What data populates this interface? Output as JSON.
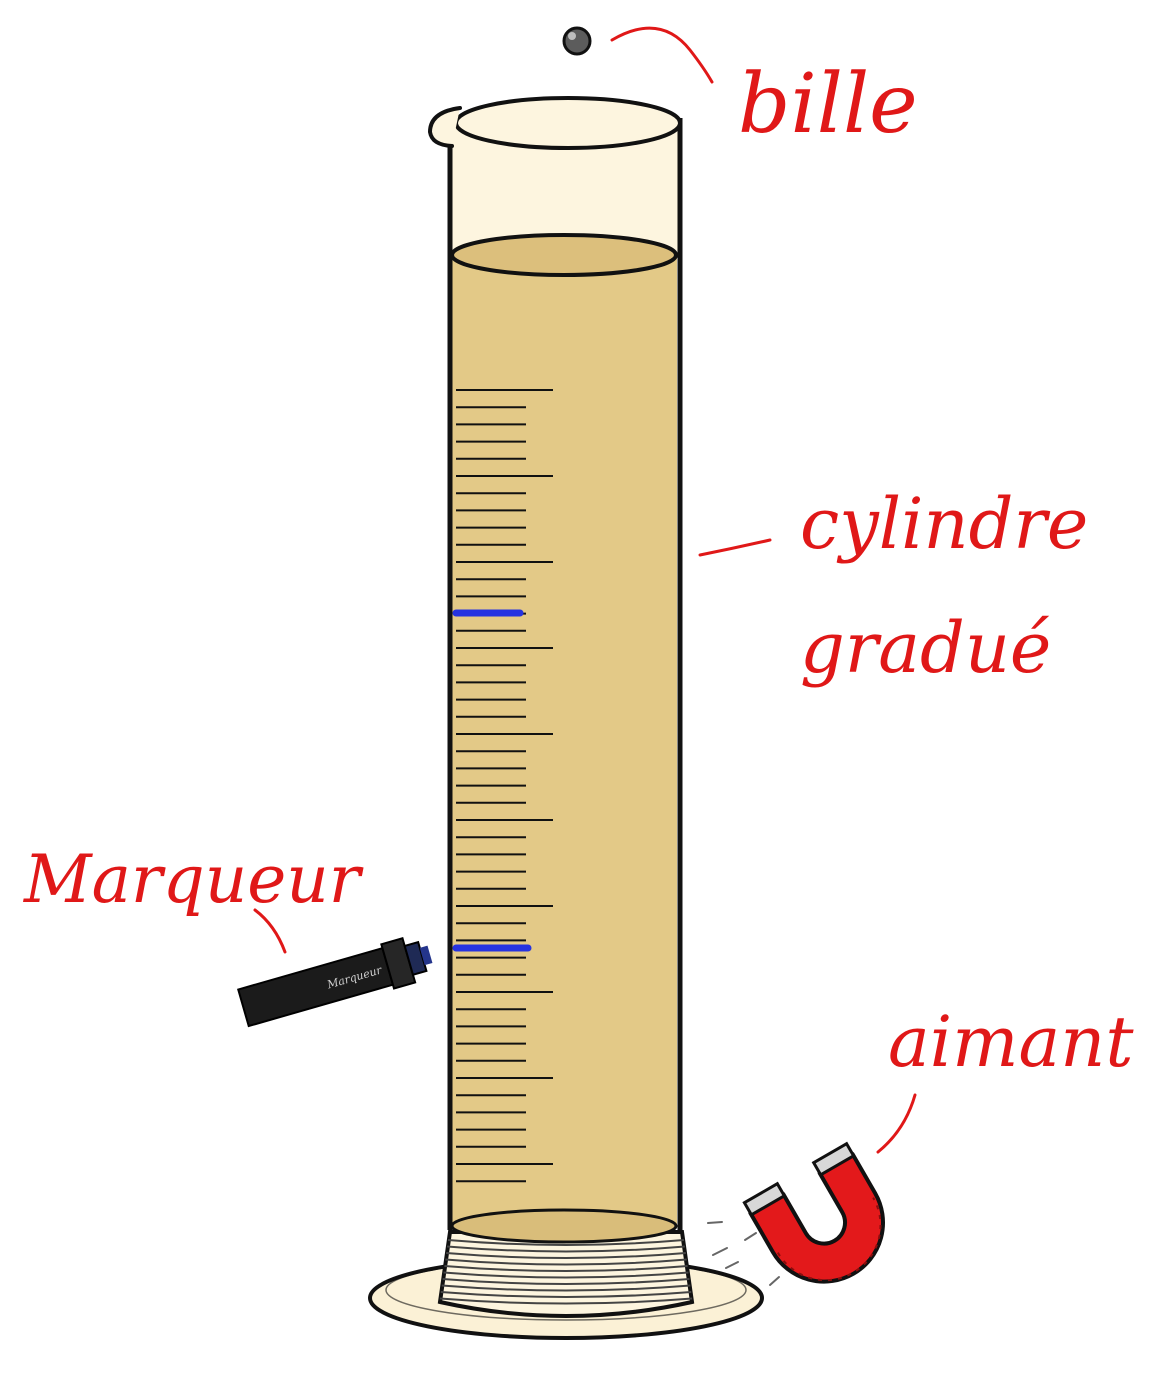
{
  "labels": {
    "ball": "bille",
    "cylinder_line1": "cylindre",
    "cylinder_line2": "gradué",
    "marker": "Marqueur",
    "magnet": "aimant"
  },
  "marker_body_text": "Marqueur",
  "colors": {
    "label": "#e01818",
    "liquid": "#e3c987",
    "glass": "#fdf5df",
    "base": "#fbf1d6",
    "outline": "#111111",
    "blue_mark": "#2633e0",
    "magnet": "#e3191b",
    "marker_body": "#1b1b1b"
  },
  "cylinder": {
    "minor_divisions_between_major": 4,
    "blue_marks": 2
  },
  "icons": [
    "ball-icon",
    "marker-pen-icon",
    "horseshoe-magnet-icon"
  ]
}
